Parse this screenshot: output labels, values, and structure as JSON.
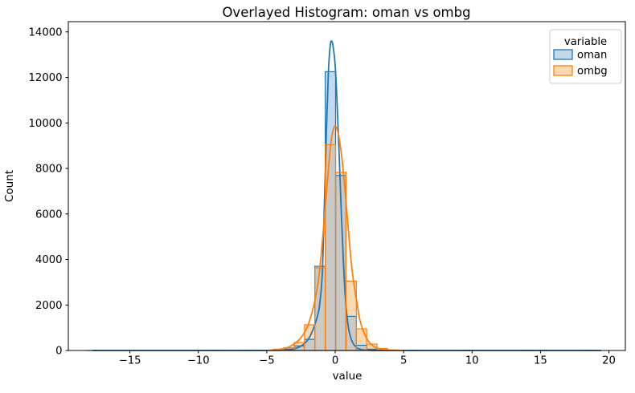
{
  "chart_data": {
    "type": "histogram",
    "title": "Overlayed Histogram: oman vs ombg",
    "xlabel": "value",
    "ylabel": "Count",
    "xlim": [
      -19.5,
      21.2
    ],
    "ylim": [
      0,
      14450
    ],
    "grid": false,
    "bin_width": 0.7576,
    "overlap_fill": "#cbcac6",
    "spine_color": "#000000",
    "xticks": {
      "values": [
        -15,
        -10,
        -5,
        0,
        5,
        10,
        15,
        20
      ],
      "labels": [
        "−15",
        "−10",
        "−5",
        "0",
        "5",
        "10",
        "15",
        "20"
      ]
    },
    "yticks": {
      "values": [
        0,
        2000,
        4000,
        6000,
        8000,
        10000,
        12000,
        14000
      ],
      "labels": [
        "0",
        "2000",
        "4000",
        "6000",
        "8000",
        "10000",
        "12000",
        "14000"
      ]
    },
    "legend": {
      "title": "variable",
      "position": "upper right",
      "border_color": "#cccccc",
      "entries": [
        {
          "label": "oman",
          "edge": "#1f77b4",
          "fill": "#c3d9ec"
        },
        {
          "label": "ombg",
          "edge": "#ff7f0e",
          "fill": "#fdd9b3"
        }
      ]
    },
    "series": [
      {
        "name": "oman",
        "color": "#1f77b4",
        "fill": "#c3d9ec",
        "bins": [
          [
            -18.15,
            2
          ],
          [
            -9.06,
            1
          ],
          [
            -6.03,
            1
          ],
          [
            -4.52,
            20
          ],
          [
            -3.76,
            60
          ],
          [
            -3.0,
            200
          ],
          [
            -2.24,
            490
          ],
          [
            -1.49,
            3700
          ],
          [
            -0.73,
            12250
          ],
          [
            0.03,
            7690
          ],
          [
            0.79,
            1500
          ],
          [
            1.54,
            230
          ],
          [
            2.3,
            60
          ],
          [
            3.06,
            15
          ],
          [
            5.33,
            1
          ],
          [
            9.12,
            2
          ],
          [
            13.67,
            1
          ],
          [
            18.21,
            2
          ]
        ],
        "kde": [
          [
            -17.7,
            1
          ],
          [
            -14,
            1
          ],
          [
            -10,
            1
          ],
          [
            -7,
            1
          ],
          [
            -5,
            3
          ],
          [
            -4,
            10
          ],
          [
            -3.5,
            25
          ],
          [
            -3,
            70
          ],
          [
            -2.6,
            160
          ],
          [
            -2.2,
            330
          ],
          [
            -1.9,
            560
          ],
          [
            -1.6,
            950
          ],
          [
            -1.35,
            1400
          ],
          [
            -1.15,
            1950
          ],
          [
            -0.95,
            3300
          ],
          [
            -0.8,
            6200
          ],
          [
            -0.65,
            9500
          ],
          [
            -0.5,
            12200
          ],
          [
            -0.38,
            13300
          ],
          [
            -0.28,
            13600
          ],
          [
            -0.15,
            13350
          ],
          [
            0,
            12500
          ],
          [
            0.15,
            10700
          ],
          [
            0.3,
            8400
          ],
          [
            0.45,
            6000
          ],
          [
            0.6,
            3900
          ],
          [
            0.75,
            2250
          ],
          [
            0.9,
            1300
          ],
          [
            1.05,
            750
          ],
          [
            1.25,
            380
          ],
          [
            1.5,
            160
          ],
          [
            1.8,
            60
          ],
          [
            2.2,
            18
          ],
          [
            2.6,
            6
          ],
          [
            3,
            2
          ],
          [
            4,
            1
          ],
          [
            8,
            1
          ],
          [
            13,
            1
          ],
          [
            19.4,
            1
          ]
        ]
      },
      {
        "name": "ombg",
        "color": "#ff7f0e",
        "fill": "#fdd9b3",
        "bins": [
          [
            -4.52,
            60
          ],
          [
            -3.76,
            120
          ],
          [
            -3.0,
            350
          ],
          [
            -2.24,
            1130
          ],
          [
            -1.49,
            3630
          ],
          [
            -0.73,
            9050
          ],
          [
            0.03,
            7830
          ],
          [
            0.79,
            3050
          ],
          [
            1.54,
            950
          ],
          [
            2.3,
            280
          ],
          [
            3.06,
            90
          ],
          [
            3.82,
            25
          ]
        ],
        "kde": [
          [
            -4.9,
            8
          ],
          [
            -4.3,
            30
          ],
          [
            -3.8,
            80
          ],
          [
            -3.3,
            180
          ],
          [
            -2.9,
            330
          ],
          [
            -2.5,
            560
          ],
          [
            -2.1,
            950
          ],
          [
            -1.8,
            1450
          ],
          [
            -1.5,
            2150
          ],
          [
            -1.2,
            3200
          ],
          [
            -0.95,
            4700
          ],
          [
            -0.7,
            6500
          ],
          [
            -0.45,
            8300
          ],
          [
            -0.25,
            9400
          ],
          [
            -0.05,
            9850
          ],
          [
            0.15,
            9700
          ],
          [
            0.35,
            9100
          ],
          [
            0.55,
            8100
          ],
          [
            0.75,
            6800
          ],
          [
            0.95,
            5400
          ],
          [
            1.15,
            4000
          ],
          [
            1.35,
            3000
          ],
          [
            1.6,
            2050
          ],
          [
            1.8,
            1350
          ],
          [
            2.1,
            780
          ],
          [
            2.4,
            430
          ],
          [
            2.7,
            230
          ],
          [
            3,
            120
          ],
          [
            3.4,
            50
          ],
          [
            3.8,
            20
          ],
          [
            4.4,
            6
          ],
          [
            4.9,
            2
          ]
        ]
      }
    ]
  }
}
